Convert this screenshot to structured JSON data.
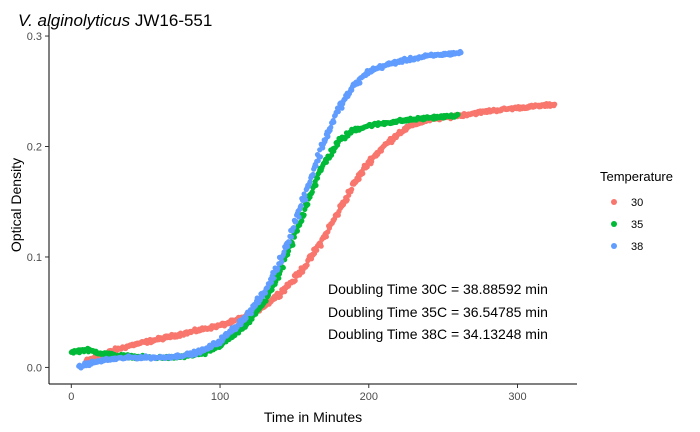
{
  "chart_data": {
    "type": "scatter",
    "title_italic": "V. alginolyticus",
    "title_rest": " JW16-551",
    "xlabel": "Time in Minutes",
    "ylabel": "Optical Density",
    "xlim": [
      -15,
      340
    ],
    "ylim": [
      -0.015,
      0.31
    ],
    "x_ticks": [
      "0",
      "100",
      "200",
      "300"
    ],
    "x_tick_values": [
      0,
      100,
      200,
      300
    ],
    "y_ticks": [
      "0.0",
      "0.1",
      "0.2",
      "0.3"
    ],
    "y_tick_values": [
      0,
      0.1,
      0.2,
      0.3
    ],
    "grid": false,
    "legend": {
      "title": "Temperature",
      "placement": "right",
      "entries": [
        "30",
        "35",
        "38"
      ]
    },
    "annotations": [
      "Doubling Time 30C = 38.88592 min",
      "Doubling Time 35C = 36.54785 min",
      "Doubling Time 38C = 34.13248 min"
    ],
    "series": [
      {
        "name": "30",
        "color": "#F8766D",
        "x_range": [
          10,
          325
        ],
        "curve": [
          [
            10,
            0.006
          ],
          [
            20,
            0.011
          ],
          [
            30,
            0.016
          ],
          [
            40,
            0.02
          ],
          [
            50,
            0.023
          ],
          [
            60,
            0.026
          ],
          [
            70,
            0.029
          ],
          [
            80,
            0.032
          ],
          [
            90,
            0.035
          ],
          [
            100,
            0.038
          ],
          [
            110,
            0.042
          ],
          [
            120,
            0.048
          ],
          [
            130,
            0.056
          ],
          [
            140,
            0.067
          ],
          [
            150,
            0.08
          ],
          [
            160,
            0.097
          ],
          [
            170,
            0.118
          ],
          [
            180,
            0.142
          ],
          [
            190,
            0.166
          ],
          [
            200,
            0.186
          ],
          [
            210,
            0.2
          ],
          [
            220,
            0.212
          ],
          [
            230,
            0.22
          ],
          [
            240,
            0.224
          ],
          [
            260,
            0.228
          ],
          [
            280,
            0.232
          ],
          [
            300,
            0.235
          ],
          [
            325,
            0.238
          ]
        ]
      },
      {
        "name": "35",
        "color": "#00BA38",
        "x_range": [
          0,
          260
        ],
        "curve": [
          [
            0,
            0.014
          ],
          [
            10,
            0.016
          ],
          [
            20,
            0.013
          ],
          [
            30,
            0.011
          ],
          [
            40,
            0.01
          ],
          [
            50,
            0.009
          ],
          [
            60,
            0.009
          ],
          [
            70,
            0.009
          ],
          [
            80,
            0.011
          ],
          [
            90,
            0.013
          ],
          [
            100,
            0.02
          ],
          [
            110,
            0.03
          ],
          [
            120,
            0.042
          ],
          [
            130,
            0.06
          ],
          [
            140,
            0.085
          ],
          [
            150,
            0.118
          ],
          [
            160,
            0.155
          ],
          [
            170,
            0.185
          ],
          [
            180,
            0.205
          ],
          [
            190,
            0.215
          ],
          [
            200,
            0.219
          ],
          [
            220,
            0.223
          ],
          [
            240,
            0.226
          ],
          [
            260,
            0.228
          ]
        ]
      },
      {
        "name": "38",
        "color": "#619CFF",
        "x_range": [
          5,
          262
        ],
        "curve": [
          [
            5,
            0.0
          ],
          [
            10,
            0.003
          ],
          [
            20,
            0.006
          ],
          [
            30,
            0.008
          ],
          [
            40,
            0.009
          ],
          [
            50,
            0.009
          ],
          [
            60,
            0.009
          ],
          [
            70,
            0.01
          ],
          [
            80,
            0.012
          ],
          [
            90,
            0.016
          ],
          [
            100,
            0.024
          ],
          [
            110,
            0.036
          ],
          [
            120,
            0.05
          ],
          [
            130,
            0.068
          ],
          [
            140,
            0.095
          ],
          [
            150,
            0.13
          ],
          [
            160,
            0.168
          ],
          [
            170,
            0.205
          ],
          [
            180,
            0.235
          ],
          [
            190,
            0.255
          ],
          [
            200,
            0.268
          ],
          [
            210,
            0.273
          ],
          [
            220,
            0.277
          ],
          [
            240,
            0.282
          ],
          [
            262,
            0.285
          ]
        ]
      }
    ]
  }
}
